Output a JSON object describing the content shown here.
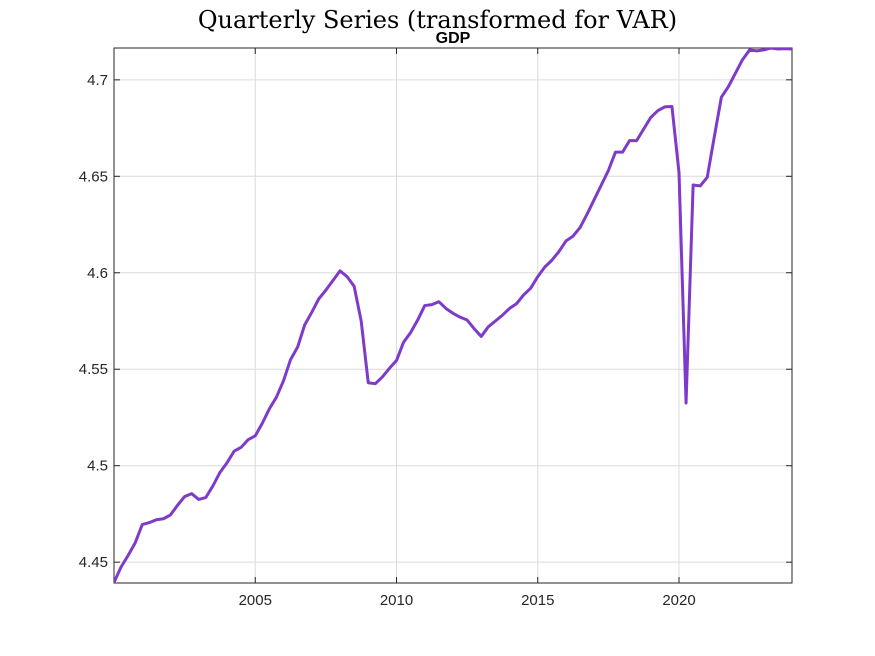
{
  "figure": {
    "suptitle": "Quarterly Series (transformed for VAR)"
  },
  "chart_data": {
    "type": "line",
    "title": "GDP",
    "xlabel": "",
    "ylabel": "",
    "xlim": [
      2000.0,
      2024.0
    ],
    "ylim": [
      4.4392,
      4.7165
    ],
    "xticks": [
      2005,
      2010,
      2015,
      2020
    ],
    "xtick_labels": [
      "2005",
      "2010",
      "2015",
      "2020"
    ],
    "yticks": [
      4.45,
      4.5,
      4.55,
      4.6,
      4.65,
      4.7
    ],
    "ytick_labels": [
      "4.45",
      "4.5",
      "4.55",
      "4.6",
      "4.65",
      "4.7"
    ],
    "grid": true,
    "series": [
      {
        "color": "#7e3bc9",
        "x": [
          2000.0,
          2000.25,
          2000.5,
          2000.75,
          2001.0,
          2001.25,
          2001.5,
          2001.75,
          2002.0,
          2002.25,
          2002.5,
          2002.75,
          2003.0,
          2003.25,
          2003.5,
          2003.75,
          2004.0,
          2004.25,
          2004.5,
          2004.75,
          2005.0,
          2005.25,
          2005.5,
          2005.75,
          2006.0,
          2006.25,
          2006.5,
          2006.75,
          2007.0,
          2007.25,
          2007.5,
          2007.75,
          2008.0,
          2008.25,
          2008.5,
          2008.75,
          2009.0,
          2009.25,
          2009.5,
          2009.75,
          2010.0,
          2010.25,
          2010.5,
          2010.75,
          2011.0,
          2011.25,
          2011.5,
          2011.75,
          2012.0,
          2012.25,
          2012.5,
          2012.75,
          2013.0,
          2013.25,
          2013.5,
          2013.75,
          2014.0,
          2014.25,
          2014.5,
          2014.75,
          2015.0,
          2015.25,
          2015.5,
          2015.75,
          2016.0,
          2016.25,
          2016.5,
          2016.75,
          2017.0,
          2017.25,
          2017.5,
          2017.75,
          2018.0,
          2018.25,
          2018.5,
          2018.75,
          2019.0,
          2019.25,
          2019.5,
          2019.75,
          2020.0,
          2020.25,
          2020.5,
          2020.75,
          2021.0,
          2021.25,
          2021.5,
          2021.75,
          2022.0,
          2022.25,
          2022.5,
          2022.75,
          2023.0,
          2023.25,
          2023.5,
          2023.75,
          2024.0
        ],
        "values": [
          4.4395,
          4.4475,
          4.4535,
          4.46,
          4.4695,
          4.4705,
          4.472,
          4.4725,
          4.4745,
          4.4795,
          4.484,
          4.4855,
          4.4825,
          4.4835,
          4.4895,
          4.4965,
          4.5015,
          4.5075,
          4.5095,
          4.5135,
          4.5155,
          4.522,
          4.5295,
          4.5355,
          4.544,
          4.555,
          4.5615,
          4.573,
          4.5795,
          4.5865,
          4.591,
          4.596,
          4.601,
          4.598,
          4.593,
          4.575,
          4.543,
          4.5425,
          4.546,
          4.5505,
          4.5545,
          4.564,
          4.569,
          4.5755,
          4.583,
          4.5835,
          4.585,
          4.5815,
          4.579,
          4.577,
          4.5755,
          4.571,
          4.567,
          4.572,
          4.575,
          4.578,
          4.5815,
          4.584,
          4.5885,
          4.592,
          4.598,
          4.603,
          4.6065,
          4.611,
          4.6165,
          4.619,
          4.6235,
          4.6305,
          4.638,
          4.6455,
          4.653,
          4.6625,
          4.6625,
          4.6685,
          4.6685,
          4.6745,
          4.6805,
          4.684,
          4.686,
          4.6862,
          4.652,
          4.5325,
          4.6455,
          4.645,
          4.6495,
          4.6705,
          4.691,
          4.6965,
          4.7035,
          4.7105,
          4.7155,
          4.715,
          4.7155,
          4.7165,
          4.716,
          4.7162,
          4.716
        ]
      }
    ]
  }
}
